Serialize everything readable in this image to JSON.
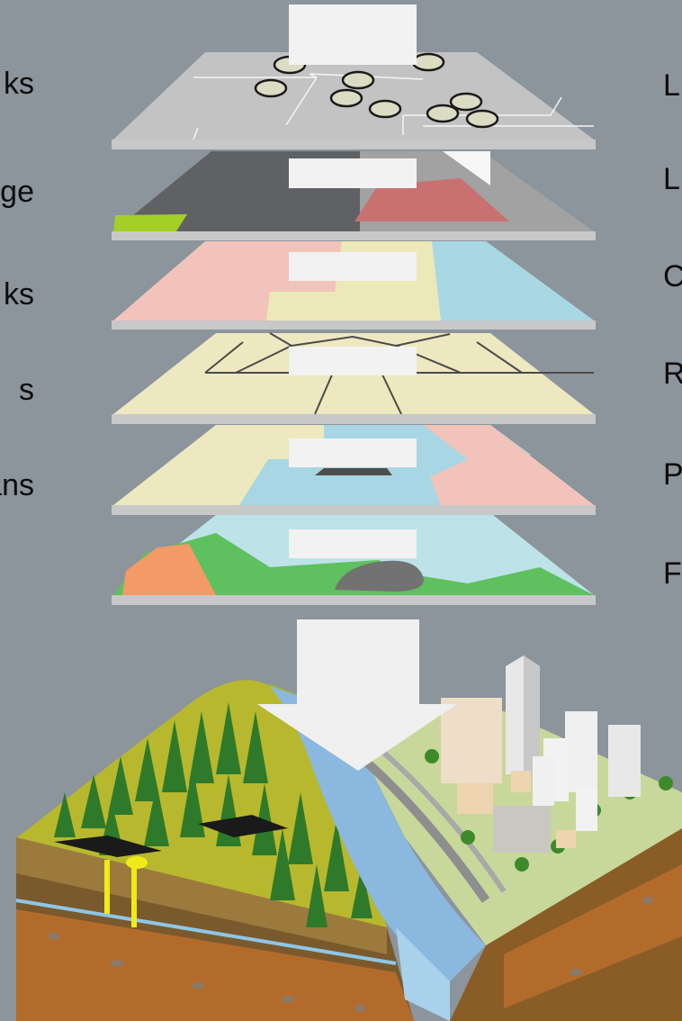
{
  "colors": {
    "background": "#8c949c",
    "layer_edge": "#c4c4c4",
    "label_box": "#f2f2f2",
    "arrow": "#f0f0f0"
  },
  "left_labels": [
    "ks",
    "ge",
    "ks",
    "s",
    "ans"
  ],
  "right_labels": [
    "L",
    "L",
    "C",
    "R",
    "P",
    "F"
  ],
  "layers": [
    {
      "name": "points-layer",
      "box_text": ""
    },
    {
      "name": "shade-layer",
      "box_text": ""
    },
    {
      "name": "zones-layer",
      "box_text": ""
    },
    {
      "name": "roads-layer",
      "box_text": ""
    },
    {
      "name": "parcels-layer",
      "box_text": ""
    },
    {
      "name": "base-layer",
      "box_text": ""
    }
  ],
  "icons": {
    "arrow": "down-arrow-icon",
    "terrain": "terrain-block-illustration"
  }
}
